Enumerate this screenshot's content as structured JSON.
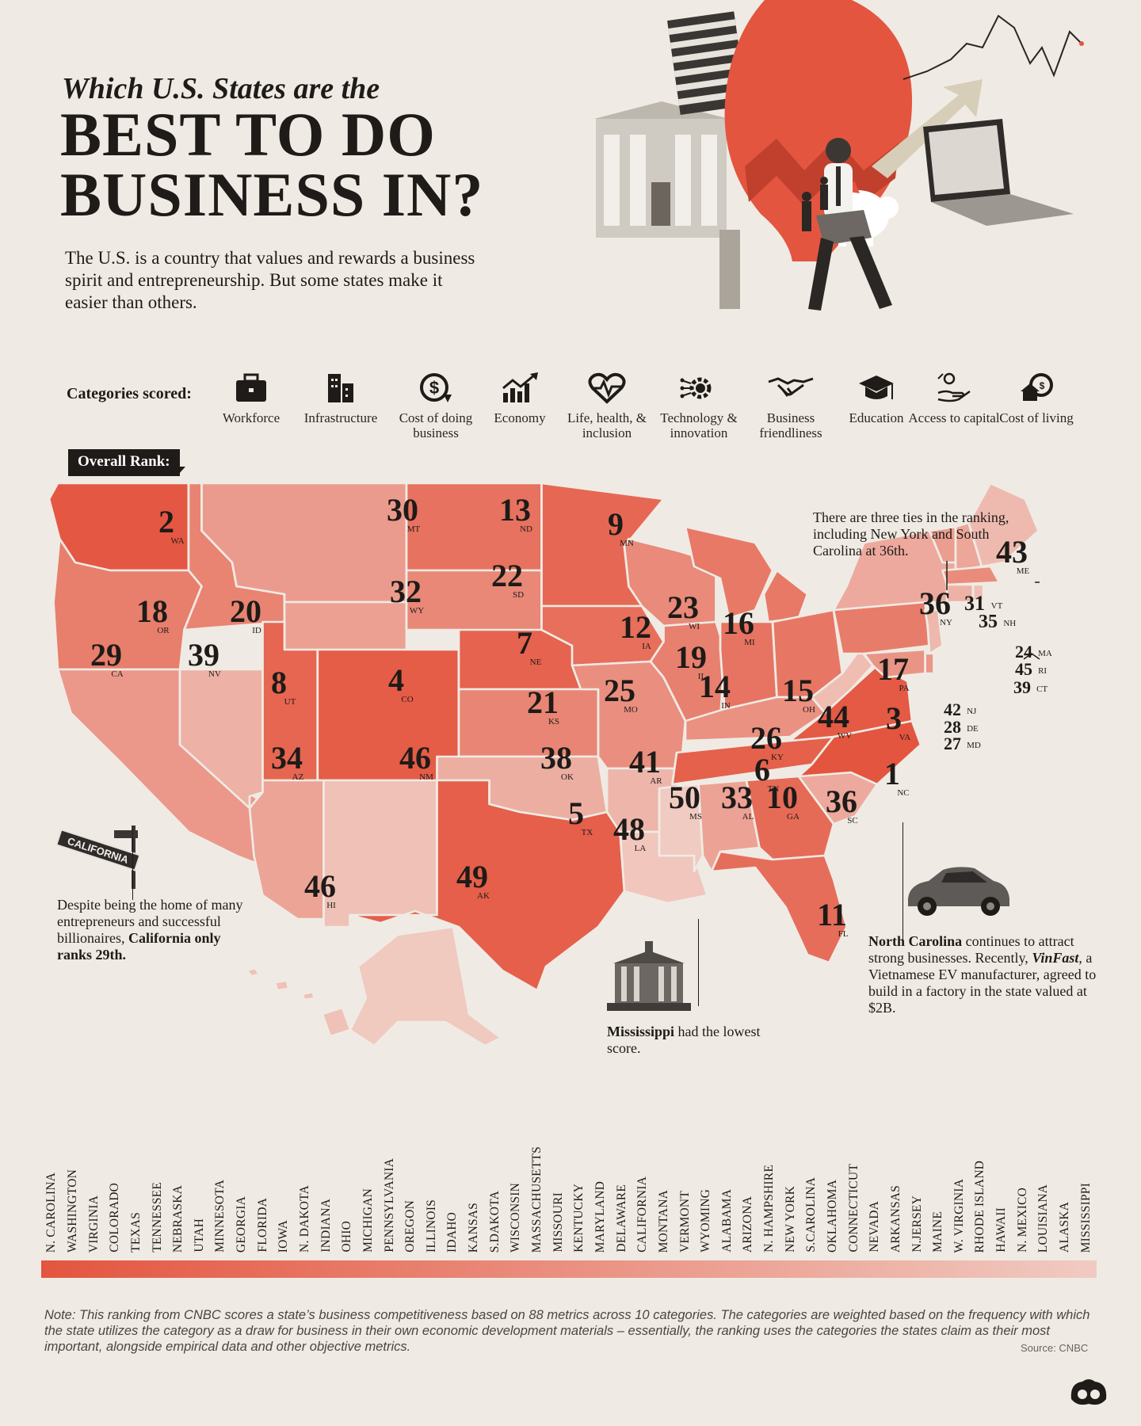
{
  "header": {
    "title_pre": "Which U.S. States are the",
    "title_main": "BEST TO DO BUSINESS IN?",
    "intro": "The U.S. is a country that values and rewards a business spirit and entrepreneurship. But some states make it easier than others."
  },
  "categories": {
    "label": "Categories scored:",
    "items": [
      {
        "label": "Workforce",
        "icon": "briefcase-icon"
      },
      {
        "label": "Infrastructure",
        "icon": "buildings-icon"
      },
      {
        "label": "Cost of doing business",
        "icon": "dollar-coin-icon"
      },
      {
        "label": "Economy",
        "icon": "growth-chart-icon"
      },
      {
        "label": "Life, health, & inclusion",
        "icon": "heart-pulse-icon"
      },
      {
        "label": "Technology & innovation",
        "icon": "gear-circuit-icon"
      },
      {
        "label": "Business friendliness",
        "icon": "handshake-icon"
      },
      {
        "label": "Education",
        "icon": "graduation-cap-icon"
      },
      {
        "label": "Access to capital",
        "icon": "coin-hand-icon"
      },
      {
        "label": "Cost of living",
        "icon": "house-dollar-icon"
      }
    ]
  },
  "map": {
    "rank_label": "Overall Rank:",
    "states": [
      {
        "abbr": "NC",
        "rank": "1"
      },
      {
        "abbr": "WA",
        "rank": "2"
      },
      {
        "abbr": "VA",
        "rank": "3"
      },
      {
        "abbr": "CO",
        "rank": "4"
      },
      {
        "abbr": "TX",
        "rank": "5"
      },
      {
        "abbr": "TN",
        "rank": "6"
      },
      {
        "abbr": "NE",
        "rank": "7"
      },
      {
        "abbr": "UT",
        "rank": "8"
      },
      {
        "abbr": "MN",
        "rank": "9"
      },
      {
        "abbr": "GA",
        "rank": "10"
      },
      {
        "abbr": "FL",
        "rank": "11"
      },
      {
        "abbr": "IA",
        "rank": "12"
      },
      {
        "abbr": "ND",
        "rank": "13"
      },
      {
        "abbr": "IN",
        "rank": "14"
      },
      {
        "abbr": "OH",
        "rank": "15"
      },
      {
        "abbr": "MI",
        "rank": "16"
      },
      {
        "abbr": "PA",
        "rank": "17"
      },
      {
        "abbr": "OR",
        "rank": "18"
      },
      {
        "abbr": "IL",
        "rank": "19"
      },
      {
        "abbr": "ID",
        "rank": "20"
      },
      {
        "abbr": "KS",
        "rank": "21"
      },
      {
        "abbr": "SD",
        "rank": "22"
      },
      {
        "abbr": "WI",
        "rank": "23"
      },
      {
        "abbr": "MA",
        "rank": "24"
      },
      {
        "abbr": "MO",
        "rank": "25"
      },
      {
        "abbr": "KY",
        "rank": "26"
      },
      {
        "abbr": "MD",
        "rank": "27"
      },
      {
        "abbr": "DE",
        "rank": "28"
      },
      {
        "abbr": "CA",
        "rank": "29"
      },
      {
        "abbr": "MT",
        "rank": "30"
      },
      {
        "abbr": "VT",
        "rank": "31"
      },
      {
        "abbr": "WY",
        "rank": "32"
      },
      {
        "abbr": "AL",
        "rank": "33"
      },
      {
        "abbr": "AZ",
        "rank": "34"
      },
      {
        "abbr": "NH",
        "rank": "35"
      },
      {
        "abbr": "NY",
        "rank": "36"
      },
      {
        "abbr": "SC",
        "rank": "36"
      },
      {
        "abbr": "OK",
        "rank": "38"
      },
      {
        "abbr": "NV",
        "rank": "39"
      },
      {
        "abbr": "CT",
        "rank": "39"
      },
      {
        "abbr": "AR",
        "rank": "41"
      },
      {
        "abbr": "NJ",
        "rank": "42"
      },
      {
        "abbr": "ME",
        "rank": "43"
      },
      {
        "abbr": "WV",
        "rank": "44"
      },
      {
        "abbr": "RI",
        "rank": "45"
      },
      {
        "abbr": "HI",
        "rank": "46"
      },
      {
        "abbr": "NM",
        "rank": "46"
      },
      {
        "abbr": "LA",
        "rank": "48"
      },
      {
        "abbr": "AK",
        "rank": "49"
      },
      {
        "abbr": "MS",
        "rank": "50"
      }
    ],
    "colors": {
      "rank_1": "#e4553f",
      "rank_50": "#f0cbc2",
      "border": "#efebe4"
    }
  },
  "annotations": {
    "ties": "There are three ties in the ranking, including New York and South Carolina at 36th.",
    "california_pre": "Despite being the home of many entrepreneurs and successful billionaires,",
    "california_bold": "California only ranks 29th.",
    "california_sign": "CALIFORNIA",
    "nc_bold": "North Carolina",
    "nc_text1": " continues to attract strong businesses. Recently, ",
    "nc_italic": "VinFast",
    "nc_text2": ", a Vietnamese EV manufacturer, agreed to build in a factory in the state valued at $2B.",
    "ms_bold": "Mississippi",
    "ms_text": " had the lowest score."
  },
  "ranking_list": [
    "N. CAROLINA",
    "WASHINGTON",
    "VIRGINIA",
    "COLORADO",
    "TEXAS",
    "TENNESSEE",
    "NEBRASKA",
    "UTAH",
    "MINNESOTA",
    "GEORGIA",
    "FLORIDA",
    "IOWA",
    "N. DAKOTA",
    "INDIANA",
    "OHIO",
    "MICHIGAN",
    "PENNSYLVANIA",
    "OREGON",
    "ILLINOIS",
    "IDAHO",
    "KANSAS",
    "S.DAKOTA",
    "WISCONSIN",
    "MASSACHUSETTS",
    "MISSOURI",
    "KENTUCKY",
    "MARYLAND",
    "DELAWARE",
    "CALIFORNIA",
    "MONTANA",
    "VERMONT",
    "WYOMING",
    "ALABAMA",
    "ARIZONA",
    "N. HAMPSHIRE",
    "NEW YORK",
    "S.CAROLINA",
    "OKLAHOMA",
    "CONNECTICUT",
    "NEVADA",
    "ARKANSAS",
    "N.JERSEY",
    "MAINE",
    "W. VIRGINIA",
    "RHODE ISLAND",
    "HAWAII",
    "N. MEXICO",
    "LOUISIANA",
    "ALASKA",
    "MISSISSIPPI"
  ],
  "footer": {
    "note": "Note: This ranking from CNBC scores a state’s business competitiveness based on 88 metrics across 10 categories. The categories are weighted based on the frequency with which the state utilizes the category as a draw for business in their own economic development materials – essentially, the ranking uses the categories the states claim as their most important, alongside empirical data and other objective metrics.",
    "source": "Source: CNBC"
  }
}
